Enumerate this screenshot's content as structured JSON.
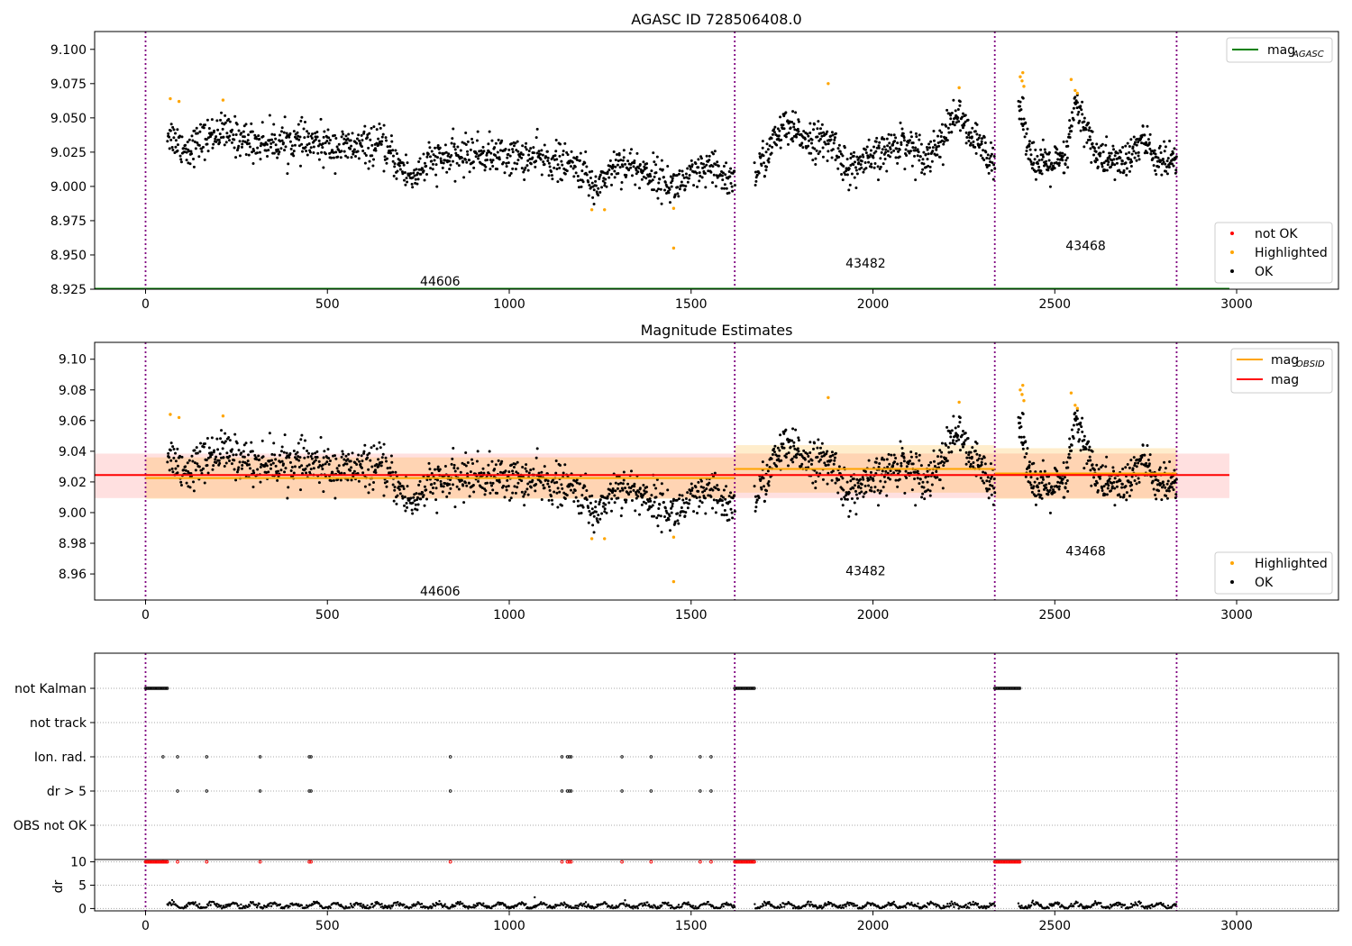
{
  "figure": {
    "title_top": "AGASC ID 728506408.0",
    "title_mid": "Magnitude Estimates"
  },
  "chart_data": [
    {
      "type": "scatter",
      "title": "AGASC ID 728506408.0",
      "xlabel": "",
      "ylabel": "",
      "xlim": [
        -140,
        3280
      ],
      "ylim": [
        8.925,
        9.113
      ],
      "xticks": [
        0,
        500,
        1000,
        1500,
        2000,
        2500,
        3000
      ],
      "yticks": [
        8.925,
        8.95,
        8.975,
        9.0,
        9.025,
        9.05,
        9.075,
        9.1
      ],
      "ytick_labels": [
        "8.925",
        "8.950",
        "8.975",
        "9.000",
        "9.025",
        "9.050",
        "9.075",
        "9.100"
      ],
      "obs_boundaries": [
        0,
        1620,
        2335,
        2835
      ],
      "obs_labels": [
        {
          "text": "44606",
          "x": 810,
          "y": 8.931
        },
        {
          "text": "43482",
          "x": 1980,
          "y": 8.944
        },
        {
          "text": "43468",
          "x": 2585,
          "y": 8.957
        }
      ],
      "mag_agasc": 8.925,
      "series": [
        {
          "name": "OK",
          "color": "#000000",
          "marker": "dot",
          "values": "see segments"
        },
        {
          "name": "Highlighted",
          "color": "#ffa500",
          "points": [
            [
              68,
              9.064
            ],
            [
              92,
              9.062
            ],
            [
              213,
              9.063
            ],
            [
              1227,
              8.983
            ],
            [
              1262,
              8.983
            ],
            [
              1452,
              8.984
            ],
            [
              1452,
              8.955
            ],
            [
              1877,
              9.075
            ],
            [
              2237,
              9.072
            ],
            [
              2405,
              9.08
            ],
            [
              2410,
              9.077
            ],
            [
              2412,
              9.083
            ],
            [
              2415,
              9.073
            ],
            [
              2545,
              9.078
            ],
            [
              2556,
              9.07
            ],
            [
              2562,
              9.068
            ]
          ]
        },
        {
          "name": "not OK",
          "color": "#ff0000",
          "points": []
        }
      ],
      "segments": [
        {
          "x0": 60,
          "x1": 1620,
          "n": 1100,
          "base": [
            [
              60,
              9.04
            ],
            [
              110,
              9.027
            ],
            [
              200,
              9.04
            ],
            [
              300,
              9.032
            ],
            [
              400,
              9.033
            ],
            [
              550,
              9.028
            ],
            [
              650,
              9.03
            ],
            [
              730,
              9.006
            ],
            [
              780,
              9.018
            ],
            [
              900,
              9.024
            ],
            [
              1100,
              9.02
            ],
            [
              1200,
              9.013
            ],
            [
              1230,
              8.998
            ],
            [
              1300,
              9.018
            ],
            [
              1400,
              9.008
            ],
            [
              1450,
              9.0
            ],
            [
              1550,
              9.013
            ],
            [
              1620,
              9.003
            ]
          ],
          "noise": 0.009
        },
        {
          "x0": 1675,
          "x1": 2335,
          "n": 520,
          "base": [
            [
              1675,
              9.008
            ],
            [
              1700,
              9.02
            ],
            [
              1750,
              9.042
            ],
            [
              1850,
              9.033
            ],
            [
              1900,
              9.03
            ],
            [
              1925,
              9.012
            ],
            [
              2000,
              9.02
            ],
            [
              2080,
              9.033
            ],
            [
              2150,
              9.022
            ],
            [
              2200,
              9.038
            ],
            [
              2230,
              9.055
            ],
            [
              2260,
              9.038
            ],
            [
              2335,
              9.02
            ]
          ],
          "noise": 0.009
        },
        {
          "x0": 2400,
          "x1": 2835,
          "n": 380,
          "base": [
            [
              2400,
              9.06
            ],
            [
              2430,
              9.03
            ],
            [
              2450,
              9.015
            ],
            [
              2530,
              9.018
            ],
            [
              2555,
              9.06
            ],
            [
              2590,
              9.04
            ],
            [
              2620,
              9.02
            ],
            [
              2700,
              9.018
            ],
            [
              2740,
              9.035
            ],
            [
              2780,
              9.02
            ],
            [
              2835,
              9.015
            ]
          ],
          "noise": 0.009
        }
      ],
      "legends": [
        {
          "location": "upper right",
          "entries": [
            {
              "label": "mag",
              "sub": "AGASC",
              "style": "line",
              "color": "#008000"
            }
          ]
        },
        {
          "location": "lower right",
          "entries": [
            {
              "label": "not OK",
              "style": "dot",
              "color": "#ff0000"
            },
            {
              "label": "Highlighted",
              "style": "dot",
              "color": "#ffa500"
            },
            {
              "label": "OK",
              "style": "dot",
              "color": "#000000"
            }
          ]
        }
      ]
    },
    {
      "type": "scatter",
      "title": "Magnitude Estimates",
      "xlim": [
        -140,
        3280
      ],
      "ylim": [
        8.943,
        9.111
      ],
      "xticks": [
        0,
        500,
        1000,
        1500,
        2000,
        2500,
        3000
      ],
      "yticks": [
        8.96,
        8.98,
        9.0,
        9.02,
        9.04,
        9.06,
        9.08,
        9.1
      ],
      "ytick_labels": [
        "8.96",
        "8.98",
        "9.00",
        "9.02",
        "9.04",
        "9.06",
        "9.08",
        "9.10"
      ],
      "obs_boundaries": [
        0,
        1620,
        2335,
        2835
      ],
      "obs_labels": [
        {
          "text": "44606",
          "x": 810,
          "y": 8.949
        },
        {
          "text": "43482",
          "x": 1980,
          "y": 8.962
        },
        {
          "text": "43468",
          "x": 2585,
          "y": 8.975
        }
      ],
      "mag": {
        "value": 9.0245,
        "band": [
          9.0095,
          9.0385
        ],
        "xrange": [
          -140,
          2980
        ],
        "color": "#ff0000"
      },
      "mag_obsid": [
        {
          "x0": 0,
          "x1": 1620,
          "value": 9.0225,
          "band": [
            9.009,
            9.036
          ]
        },
        {
          "x0": 1620,
          "x1": 2335,
          "value": 9.0285,
          "band": [
            9.013,
            9.044
          ]
        },
        {
          "x0": 2335,
          "x1": 2835,
          "value": 9.0255,
          "band": [
            9.009,
            9.042
          ]
        }
      ],
      "series": [
        {
          "name": "OK",
          "color": "#000000"
        },
        {
          "name": "Highlighted",
          "color": "#ffa500",
          "points": [
            [
              68,
              9.064
            ],
            [
              92,
              9.062
            ],
            [
              213,
              9.063
            ],
            [
              1227,
              8.983
            ],
            [
              1262,
              8.983
            ],
            [
              1452,
              8.984
            ],
            [
              1452,
              8.955
            ],
            [
              1877,
              9.075
            ],
            [
              2237,
              9.072
            ],
            [
              2405,
              9.08
            ],
            [
              2410,
              9.077
            ],
            [
              2412,
              9.083
            ],
            [
              2415,
              9.073
            ],
            [
              2545,
              9.078
            ],
            [
              2556,
              9.07
            ],
            [
              2562,
              9.068
            ]
          ]
        }
      ],
      "legends": [
        {
          "location": "upper right",
          "entries": [
            {
              "label": "mag",
              "sub": "OBSID",
              "style": "line",
              "color": "#ffa500"
            },
            {
              "label": "mag",
              "style": "line",
              "color": "#ff0000"
            }
          ]
        },
        {
          "location": "lower right",
          "entries": [
            {
              "label": "Highlighted",
              "style": "dot",
              "color": "#ffa500"
            },
            {
              "label": "OK",
              "style": "dot",
              "color": "#000000"
            }
          ]
        }
      ]
    },
    {
      "type": "scatter",
      "title": "",
      "xlim": [
        -140,
        3280
      ],
      "xticks": [
        0,
        500,
        1000,
        1500,
        2000,
        2500,
        3000
      ],
      "flag_rows": [
        "not Kalman",
        "not track",
        "Ion. rad.",
        "dr > 5",
        "OBS not OK"
      ],
      "flags": {
        "not Kalman": [
          [
            0,
            60
          ],
          [
            1620,
            1675
          ],
          [
            2335,
            2405
          ]
        ],
        "not track": [],
        "Ion. rad.": [
          48,
          88,
          168,
          315,
          450,
          455,
          838,
          1145,
          1160,
          1165,
          1170,
          1310,
          1390,
          1525,
          1555
        ],
        "dr > 5": [
          88,
          168,
          315,
          450,
          455,
          838,
          1145,
          1160,
          1165,
          1170,
          1310,
          1390,
          1525,
          1555
        ],
        "OBS not OK": []
      },
      "dr": {
        "ylabel": "dr",
        "ylim": [
          -0.5,
          10.5
        ],
        "yticks": [
          0,
          5,
          10
        ],
        "marker_value": 10,
        "marker_color": "#ff0000",
        "trace_color": "#000000",
        "segments": [
          [
            60,
            1620
          ],
          [
            1675,
            2335
          ],
          [
            2400,
            2835
          ]
        ],
        "outlier": [
          1070,
          2.4
        ]
      }
    }
  ]
}
